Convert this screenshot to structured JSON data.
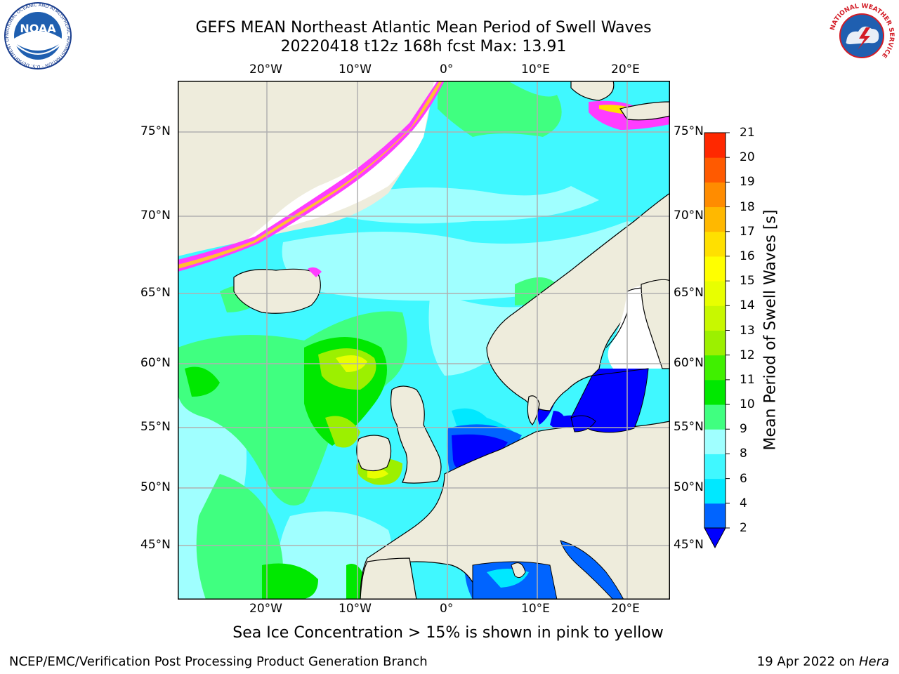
{
  "header": {
    "title_line1": "GEFS MEAN Northeast Atlantic Mean Period of Swell Waves",
    "title_line2": "20220418 t12z 168h fcst   Max: 13.91"
  },
  "logos": {
    "noaa_text": "NOAA",
    "noaa_ring": "NATIONAL OCEANIC AND ATMOSPHERIC ADMINISTRATION · U.S. DEPARTMENT OF COMMERCE",
    "nws_ring": "NATIONAL WEATHER SERVICE"
  },
  "map": {
    "lon_labels": [
      "20°W",
      "10°W",
      "0°",
      "10°E",
      "20°E"
    ],
    "lat_labels": [
      "75°N",
      "70°N",
      "65°N",
      "60°N",
      "55°N",
      "50°N",
      "45°N"
    ],
    "colors": {
      "land": "#eeecdc",
      "ice_free_white": "#ffffff",
      "grid": "#b0b0b0"
    }
  },
  "colorbar": {
    "label": "Mean Period of Swell Waves [s]",
    "ticks": [
      "2",
      "4",
      "6",
      "8",
      "9",
      "10",
      "11",
      "12",
      "13",
      "14",
      "15",
      "16",
      "17",
      "18",
      "19",
      "20",
      "21"
    ],
    "colors": [
      "#0064ff",
      "#00e8ff",
      "#40f8ff",
      "#a0ffff",
      "#40ff80",
      "#00e800",
      "#40f000",
      "#9cf000",
      "#c8f800",
      "#e8ff00",
      "#ffff00",
      "#ffe000",
      "#ffb800",
      "#ff8c00",
      "#ff5a00",
      "#ff2800"
    ],
    "extend_color": "#0000ff"
  },
  "caption": "Sea Ice Concentration > 15% is shown in pink to yellow",
  "footer": {
    "left": "NCEP/EMC/Verification Post Processing Product Generation Branch",
    "date": "19 Apr 2022 on ",
    "machine": "Hera"
  }
}
